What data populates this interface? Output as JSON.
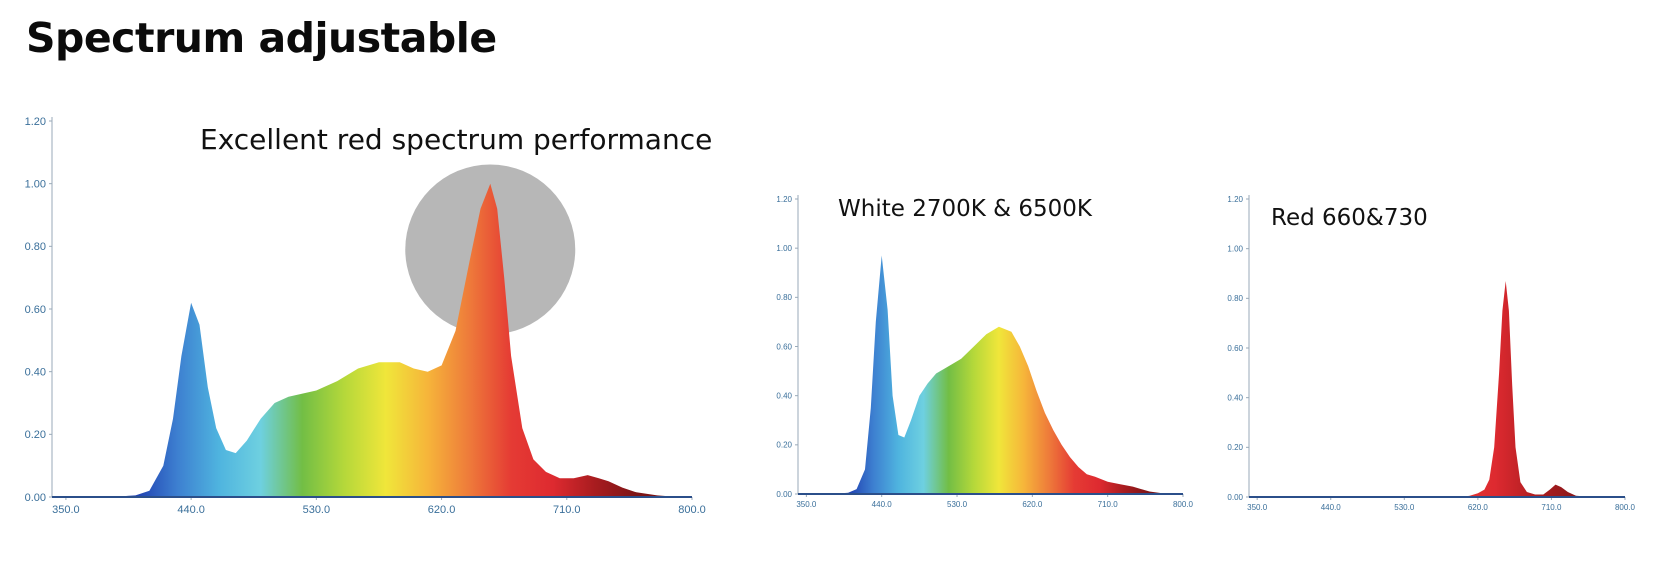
{
  "page": {
    "title": "Spectrum adjustable"
  },
  "chart_data": [
    {
      "type": "area",
      "title": "Excellent red spectrum performance",
      "xlabel": "",
      "ylabel": "",
      "x_ticks": [
        "350.0",
        "440.0",
        "530.0",
        "620.0",
        "710.0",
        "800.0"
      ],
      "y_ticks": [
        "0.00",
        "0.20",
        "0.40",
        "0.60",
        "0.80",
        "1.00",
        "1.20"
      ],
      "xlim": [
        340,
        800
      ],
      "ylim": [
        0,
        1.2
      ],
      "highlight": {
        "type": "circle",
        "color": "#b7b7b7",
        "center_x": 655,
        "center_y": 0.79
      },
      "gradient_colors": [
        "#1f3fb0",
        "#3d7fd0",
        "#4fb4df",
        "#6ed0e0",
        "#72be45",
        "#b5d83a",
        "#f0e63a",
        "#f6b53a",
        "#ee7a3a",
        "#e53b34",
        "#de2a30",
        "#a81c1f",
        "#7c1416"
      ],
      "series": [
        {
          "x": [
            340,
            380,
            400,
            410,
            420,
            427,
            433,
            440,
            446,
            452,
            458,
            465,
            472,
            480,
            490,
            500,
            510,
            520,
            530,
            545,
            560,
            575,
            590,
            600,
            610,
            620,
            630,
            640,
            648,
            655,
            660,
            665,
            670,
            678,
            686,
            695,
            705,
            715,
            725,
            733,
            740,
            750,
            760,
            775,
            790,
            800
          ],
          "y": [
            0,
            0,
            0.005,
            0.02,
            0.1,
            0.25,
            0.45,
            0.62,
            0.55,
            0.35,
            0.22,
            0.15,
            0.14,
            0.18,
            0.25,
            0.3,
            0.32,
            0.33,
            0.34,
            0.37,
            0.41,
            0.43,
            0.43,
            0.41,
            0.4,
            0.42,
            0.53,
            0.75,
            0.92,
            1.0,
            0.92,
            0.7,
            0.45,
            0.22,
            0.12,
            0.08,
            0.06,
            0.06,
            0.07,
            0.06,
            0.05,
            0.03,
            0.015,
            0.005,
            0,
            0
          ]
        }
      ]
    },
    {
      "type": "area",
      "title": "White 2700K & 6500K",
      "xlabel": "",
      "ylabel": "",
      "x_ticks": [
        "350.0",
        "440.0",
        "530.0",
        "620.0",
        "710.0",
        "800.0"
      ],
      "y_ticks": [
        "0.00",
        "0.20",
        "0.40",
        "0.60",
        "0.80",
        "1.00",
        "1.20"
      ],
      "xlim": [
        340,
        800
      ],
      "ylim": [
        0,
        1.2
      ],
      "gradient_colors": [
        "#1f3fb0",
        "#3d7fd0",
        "#4fb4df",
        "#6ed0e0",
        "#72be45",
        "#b5d83a",
        "#f0e63a",
        "#f6b53a",
        "#ee7a3a",
        "#e53b34",
        "#de2a30",
        "#a81c1f",
        "#7c1416"
      ],
      "series": [
        {
          "x": [
            340,
            380,
            400,
            410,
            420,
            427,
            433,
            440,
            447,
            453,
            460,
            467,
            475,
            485,
            495,
            505,
            515,
            525,
            535,
            550,
            565,
            580,
            595,
            605,
            615,
            625,
            635,
            645,
            655,
            665,
            675,
            685,
            695,
            710,
            725,
            740,
            750,
            760,
            775,
            790,
            800
          ],
          "y": [
            0,
            0,
            0.005,
            0.02,
            0.1,
            0.35,
            0.7,
            0.97,
            0.75,
            0.4,
            0.24,
            0.23,
            0.3,
            0.4,
            0.45,
            0.49,
            0.51,
            0.53,
            0.55,
            0.6,
            0.65,
            0.68,
            0.66,
            0.6,
            0.52,
            0.42,
            0.33,
            0.26,
            0.2,
            0.15,
            0.11,
            0.08,
            0.07,
            0.05,
            0.04,
            0.03,
            0.02,
            0.01,
            0.003,
            0,
            0
          ]
        }
      ]
    },
    {
      "type": "area",
      "title": "Red 660&730",
      "xlabel": "",
      "ylabel": "",
      "x_ticks": [
        "350.0",
        "440.0",
        "530.0",
        "620.0",
        "710.0",
        "800.0"
      ],
      "y_ticks": [
        "0.00",
        "0.20",
        "0.40",
        "0.60",
        "0.80",
        "1.00",
        "1.20"
      ],
      "xlim": [
        340,
        800
      ],
      "ylim": [
        0,
        1.2
      ],
      "gradient_colors": [
        "#f0e63a",
        "#f6b53a",
        "#ee7a3a",
        "#e53b34",
        "#de2a30",
        "#a81c1f",
        "#7c1416"
      ],
      "series": [
        {
          "x": [
            340,
            600,
            610,
            620,
            628,
            634,
            640,
            646,
            650,
            654,
            658,
            662,
            666,
            672,
            680,
            690,
            700,
            708,
            715,
            722,
            730,
            740,
            760,
            800
          ],
          "y": [
            0,
            0,
            0.005,
            0.015,
            0.03,
            0.07,
            0.2,
            0.5,
            0.75,
            0.87,
            0.75,
            0.45,
            0.2,
            0.06,
            0.02,
            0.01,
            0.01,
            0.03,
            0.05,
            0.04,
            0.02,
            0.005,
            0,
            0
          ]
        }
      ]
    }
  ]
}
